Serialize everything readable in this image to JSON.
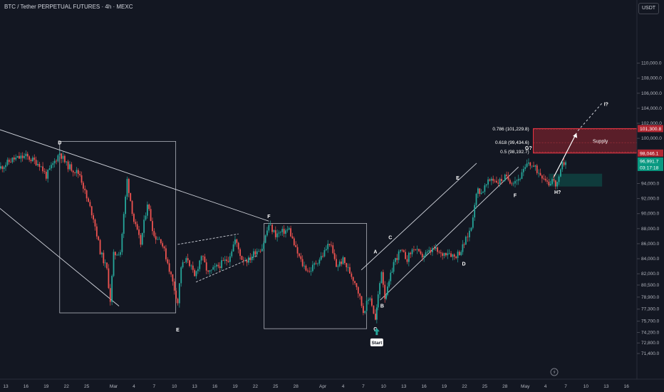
{
  "header": {
    "title": "BTC / Tether PERPETUAL FUTURES · 4h · MEXC",
    "currency": "USDT"
  },
  "colors": {
    "up": "#26a69a",
    "down": "#ef5350",
    "bg": "#131722",
    "grid": "#1f2430",
    "text": "#b2b5be"
  },
  "chart_data": {
    "type": "candlestick",
    "title": "BTC / Tether PERPETUAL FUTURES · 4h · MEXC",
    "ylim": [
      69600,
      116500
    ],
    "y_ticks": [
      {
        "v": 71400,
        "label": "71,400.0"
      },
      {
        "v": 72800,
        "label": "72,800.0"
      },
      {
        "v": 74200,
        "label": "74,200.0"
      },
      {
        "v": 75700,
        "label": "75,700.0"
      },
      {
        "v": 77300,
        "label": "77,300.0"
      },
      {
        "v": 78900,
        "label": "78,900.0"
      },
      {
        "v": 80500,
        "label": "80,500.0"
      },
      {
        "v": 82000,
        "label": "82,000.0"
      },
      {
        "v": 84000,
        "label": "84,000.0"
      },
      {
        "v": 86000,
        "label": "86,000.0"
      },
      {
        "v": 88000,
        "label": "88,000.0"
      },
      {
        "v": 90000,
        "label": "90,000.0"
      },
      {
        "v": 92000,
        "label": "92,000.0"
      },
      {
        "v": 94000,
        "label": "94,000.0"
      },
      {
        "v": 100000,
        "label": "100,000.0"
      },
      {
        "v": 102000,
        "label": "102,000.0"
      },
      {
        "v": 104000,
        "label": "104,000.0"
      },
      {
        "v": 106000,
        "label": "106,000.0"
      },
      {
        "v": 108000,
        "label": "108,000.0"
      },
      {
        "v": 110000,
        "label": "110,000.0"
      }
    ],
    "x_ticks": [
      {
        "d": 0,
        "label": "13"
      },
      {
        "d": 3,
        "label": "16"
      },
      {
        "d": 6,
        "label": "19"
      },
      {
        "d": 9,
        "label": "22"
      },
      {
        "d": 12,
        "label": "25"
      },
      {
        "d": 16,
        "label": "Mar"
      },
      {
        "d": 19,
        "label": "4"
      },
      {
        "d": 22,
        "label": "7"
      },
      {
        "d": 25,
        "label": "10"
      },
      {
        "d": 28,
        "label": "13"
      },
      {
        "d": 31,
        "label": "16"
      },
      {
        "d": 34,
        "label": "19"
      },
      {
        "d": 37,
        "label": "22"
      },
      {
        "d": 40,
        "label": "25"
      },
      {
        "d": 43,
        "label": "28"
      },
      {
        "d": 47,
        "label": "Apr"
      },
      {
        "d": 50,
        "label": "4"
      },
      {
        "d": 53,
        "label": "7"
      },
      {
        "d": 56,
        "label": "10"
      },
      {
        "d": 59,
        "label": "13"
      },
      {
        "d": 62,
        "label": "16"
      },
      {
        "d": 65,
        "label": "19"
      },
      {
        "d": 68,
        "label": "22"
      },
      {
        "d": 71,
        "label": "25"
      },
      {
        "d": 74,
        "label": "28"
      },
      {
        "d": 77,
        "label": "May"
      },
      {
        "d": 80,
        "label": "4"
      },
      {
        "d": 83,
        "label": "7"
      },
      {
        "d": 86,
        "label": "10"
      },
      {
        "d": 89,
        "label": "13"
      },
      {
        "d": 92,
        "label": "16"
      },
      {
        "d": 95,
        "label": "19"
      }
    ],
    "price_path": [
      [
        -1,
        96000
      ],
      [
        1,
        97200
      ],
      [
        3,
        97600
      ],
      [
        5,
        96600
      ],
      [
        6,
        95000
      ],
      [
        8,
        98100
      ],
      [
        9,
        96500
      ],
      [
        11,
        95200
      ],
      [
        12,
        92000
      ],
      [
        13,
        89500
      ],
      [
        14,
        85000
      ],
      [
        15,
        82500
      ],
      [
        15.5,
        78500
      ],
      [
        16,
        84500
      ],
      [
        17,
        85000
      ],
      [
        18,
        94500
      ],
      [
        19,
        89000
      ],
      [
        20,
        86000
      ],
      [
        21,
        91500
      ],
      [
        22,
        87000
      ],
      [
        23,
        86500
      ],
      [
        24,
        83500
      ],
      [
        25.5,
        78200
      ],
      [
        26,
        83000
      ],
      [
        27,
        84000
      ],
      [
        28,
        81500
      ],
      [
        29,
        84500
      ],
      [
        30,
        82000
      ],
      [
        31,
        82700
      ],
      [
        33,
        84000
      ],
      [
        34,
        86500
      ],
      [
        35,
        84000
      ],
      [
        36,
        83800
      ],
      [
        37,
        85000
      ],
      [
        38,
        85500
      ],
      [
        39,
        88500
      ],
      [
        40,
        87200
      ],
      [
        42,
        87900
      ],
      [
        43,
        85200
      ],
      [
        44,
        83200
      ],
      [
        45,
        82300
      ],
      [
        46,
        83500
      ],
      [
        47,
        84500
      ],
      [
        48,
        86200
      ],
      [
        49,
        83000
      ],
      [
        50,
        83800
      ],
      [
        51,
        82200
      ],
      [
        52,
        80500
      ],
      [
        53,
        77000
      ],
      [
        54,
        79000
      ],
      [
        54.8,
        75800
      ],
      [
        55.2,
        79000
      ],
      [
        55.7,
        82500
      ],
      [
        56.2,
        79000
      ],
      [
        56.6,
        79900
      ],
      [
        57.5,
        83500
      ],
      [
        58.5,
        85000
      ],
      [
        59.5,
        84000
      ],
      [
        60.5,
        85500
      ],
      [
        61.5,
        84300
      ],
      [
        62.5,
        84700
      ],
      [
        63.5,
        85300
      ],
      [
        64.5,
        84500
      ],
      [
        65.5,
        85000
      ],
      [
        66.5,
        84300
      ],
      [
        67.5,
        85100
      ],
      [
        68.2,
        86500
      ],
      [
        69,
        88200
      ],
      [
        69.5,
        91500
      ],
      [
        70,
        93200
      ],
      [
        70.5,
        92800
      ],
      [
        71,
        93500
      ],
      [
        72,
        94700
      ],
      [
        73,
        94200
      ],
      [
        74,
        94800
      ],
      [
        75,
        94300
      ],
      [
        76,
        94600
      ],
      [
        76.5,
        95200
      ],
      [
        77,
        96000
      ],
      [
        77.5,
        96800
      ],
      [
        78,
        96400
      ],
      [
        79,
        95500
      ],
      [
        80,
        94700
      ],
      [
        80.5,
        94000
      ],
      [
        81,
        94600
      ],
      [
        81.5,
        93800
      ],
      [
        82,
        94500
      ],
      [
        82.5,
        96500
      ],
      [
        83,
        97000
      ]
    ],
    "supply_zone": {
      "label": "Supply",
      "low": 98046.1,
      "high": 101300.8
    },
    "fib_levels": [
      {
        "label": "0.786 (101,229.8)",
        "value": 101229.8
      },
      {
        "label": "0.618 (99,434.6)",
        "value": 99434.6
      },
      {
        "label": "0.5 (98,192.7)",
        "value": 98192.7
      }
    ],
    "demand_zone": {
      "low": 93600,
      "high": 95300
    },
    "wave_labels": [
      {
        "text": "D",
        "d": 8,
        "v": 99500
      },
      {
        "text": "E",
        "d": 25.5,
        "v": 74600
      },
      {
        "text": "F",
        "d": 39,
        "v": 89700
      },
      {
        "text": "A",
        "d": 54.8,
        "v": 85000
      },
      {
        "text": "B",
        "d": 55.8,
        "v": 77800
      },
      {
        "text": "G",
        "d": 54.8,
        "v": 74700
      },
      {
        "text": "C",
        "d": 57,
        "v": 86900
      },
      {
        "text": "D",
        "d": 67.9,
        "v": 83400
      },
      {
        "text": "E",
        "d": 67,
        "v": 94800
      },
      {
        "text": "F",
        "d": 75.5,
        "v": 92500
      },
      {
        "text": "G?",
        "d": 77.5,
        "v": 98800
      },
      {
        "text": "H?",
        "d": 81.8,
        "v": 92900
      },
      {
        "text": "I?",
        "d": 89,
        "v": 104600
      }
    ],
    "annotations": {
      "start": "Start"
    },
    "price_labels": [
      {
        "label": "101,300.8",
        "value": 101300.8,
        "bg": "#b22833"
      },
      {
        "label": "98,046.1",
        "value": 98046.1,
        "bg": "#b22833"
      },
      {
        "label": "96,991.7",
        "value": 96991.7,
        "bg": "#089981",
        "sub": "03:17:18"
      }
    ],
    "current_price": 96991.7,
    "grid": false
  }
}
